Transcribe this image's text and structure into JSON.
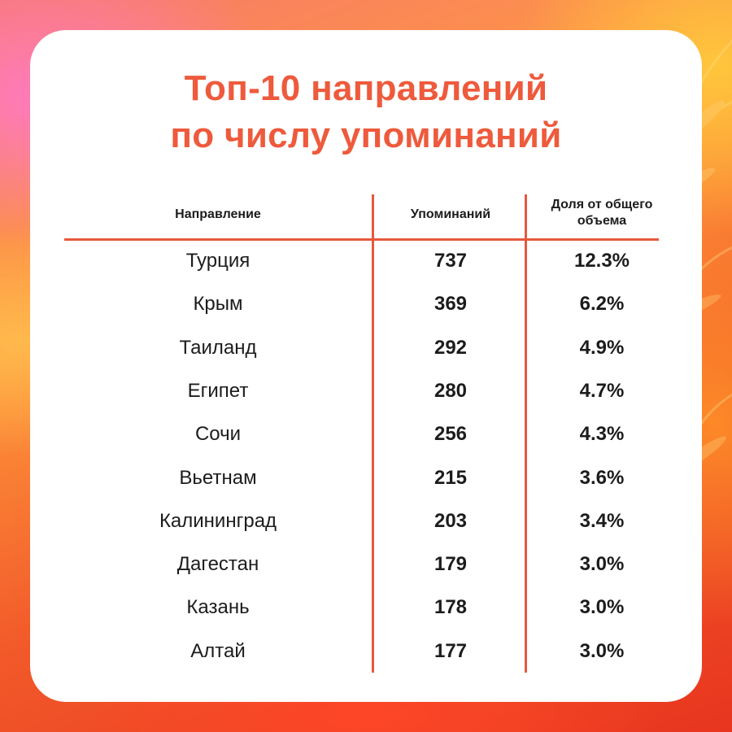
{
  "title_line1": "Топ-10 направлений",
  "title_line2": "по числу упоминаний",
  "chart_data": {
    "type": "table",
    "columns": [
      "Направление",
      "Упоминаний",
      "Доля  от общего объема"
    ],
    "header": {
      "destination": "Направление",
      "mentions": "Упоминаний",
      "share_line1": "Доля  от общего",
      "share_line2": "объема"
    },
    "rows": [
      {
        "destination": "Турция",
        "mentions": "737",
        "share": "12.3%"
      },
      {
        "destination": "Крым",
        "mentions": "369",
        "share": "6.2%"
      },
      {
        "destination": "Таиланд",
        "mentions": "292",
        "share": "4.9%"
      },
      {
        "destination": "Египет",
        "mentions": "280",
        "share": "4.7%"
      },
      {
        "destination": "Сочи",
        "mentions": "256",
        "share": "4.3%"
      },
      {
        "destination": "Вьетнам",
        "mentions": "215",
        "share": "3.6%"
      },
      {
        "destination": "Калининград",
        "mentions": "203",
        "share": "3.4%"
      },
      {
        "destination": "Дагестан",
        "mentions": "179",
        "share": "3.0%"
      },
      {
        "destination": "Казань",
        "mentions": "178",
        "share": "3.0%"
      },
      {
        "destination": "Алтай",
        "mentions": "177",
        "share": "3.0%"
      }
    ]
  },
  "colors": {
    "accent": "#ee5a3c",
    "rule": "#e8583d",
    "text": "#1c1c1c",
    "card": "#ffffff"
  }
}
